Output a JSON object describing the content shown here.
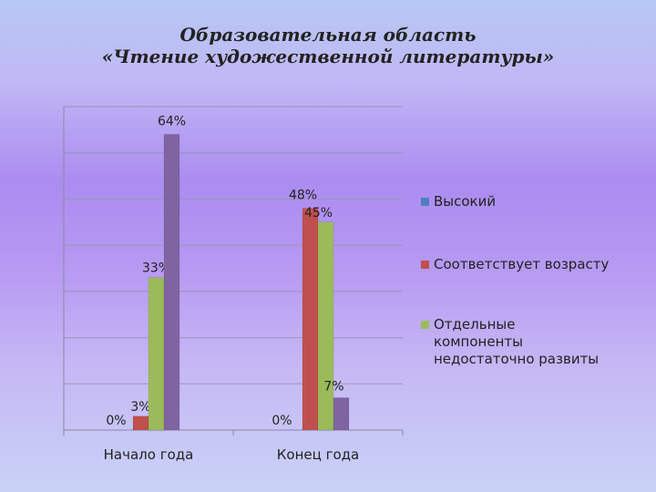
{
  "header": {
    "title_line1": "Образовательная область",
    "title_line2": "«Чтение художественной литературы»"
  },
  "chart_data": {
    "type": "bar",
    "title": "Образовательная область «Чтение художественной литературы»",
    "categories": [
      "Начало года",
      "Конец года"
    ],
    "series": [
      {
        "name": "Высокий",
        "values": [
          0,
          0
        ],
        "labels": [
          "0%",
          "0%"
        ],
        "color": "#4f7fbf"
      },
      {
        "name": "Соответствует возрасту",
        "values": [
          3,
          48
        ],
        "labels": [
          "3%",
          "48%"
        ],
        "color": "#c0504d"
      },
      {
        "name": "Отдельные компоненты недостаточно развиты",
        "values": [
          33,
          45
        ],
        "labels": [
          "33%",
          "45%"
        ],
        "color": "#9bbb59"
      },
      {
        "name": "",
        "values": [
          64,
          7
        ],
        "labels": [
          "64%",
          "7%"
        ],
        "color": "#8064a2"
      }
    ],
    "ylim": [
      0,
      70
    ],
    "grid": true,
    "legend": "right"
  },
  "legend": {
    "items": [
      {
        "label": "Высокий",
        "color": "#4f7fbf"
      },
      {
        "label": "Соответствует возрасту",
        "color": "#c0504d"
      },
      {
        "label": "Отдельные компоненты недостаточно развиты",
        "color": "#9bbb59"
      }
    ]
  }
}
